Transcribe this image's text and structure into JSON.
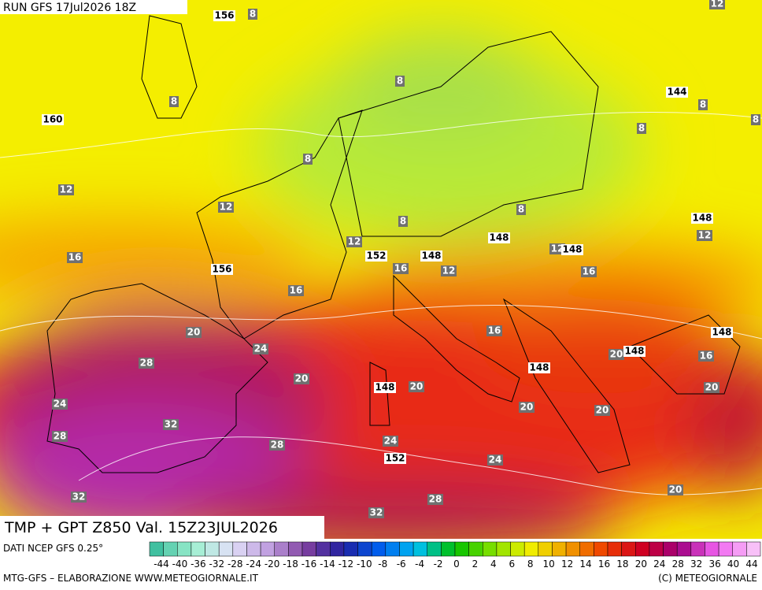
{
  "header": {
    "run": "RUN GFS 17Jul2026 18Z"
  },
  "map": {
    "height_labels": [
      "156",
      "160",
      "144",
      "148",
      "148",
      "148",
      "152",
      "148",
      "156",
      "148",
      "148",
      "148",
      "148",
      "152"
    ],
    "temperature_labels": [
      "12",
      "8",
      "8",
      "8",
      "8",
      "8",
      "8",
      "8",
      "12",
      "12",
      "8",
      "8",
      "12",
      "12",
      "12",
      "16",
      "16",
      "12",
      "16",
      "16",
      "16",
      "20",
      "24",
      "20",
      "16",
      "28",
      "20",
      "20",
      "20",
      "24",
      "20",
      "20",
      "32",
      "28",
      "24",
      "28",
      "24",
      "32",
      "28",
      "20",
      "32"
    ]
  },
  "footer": {
    "title": "TMP + GPT Z850 Val. 15Z23JUL2026",
    "source": "DATI NCEP GFS 0.25°",
    "scale_labels": [
      "-44",
      "-40",
      "-36",
      "-32",
      "-28",
      "-24",
      "-20",
      "-18",
      "-16",
      "-14",
      "-12",
      "-10",
      "-8",
      "-6",
      "-4",
      "-2",
      "0",
      "2",
      "4",
      "6",
      "8",
      "10",
      "12",
      "14",
      "16",
      "18",
      "20",
      "24",
      "28",
      "32",
      "36",
      "40",
      "44"
    ],
    "credit": "MTG-GFS – ELABORAZIONE WWW.METEOGIORNALE.IT",
    "copyright": "(C) METEOGIORNALE"
  }
}
